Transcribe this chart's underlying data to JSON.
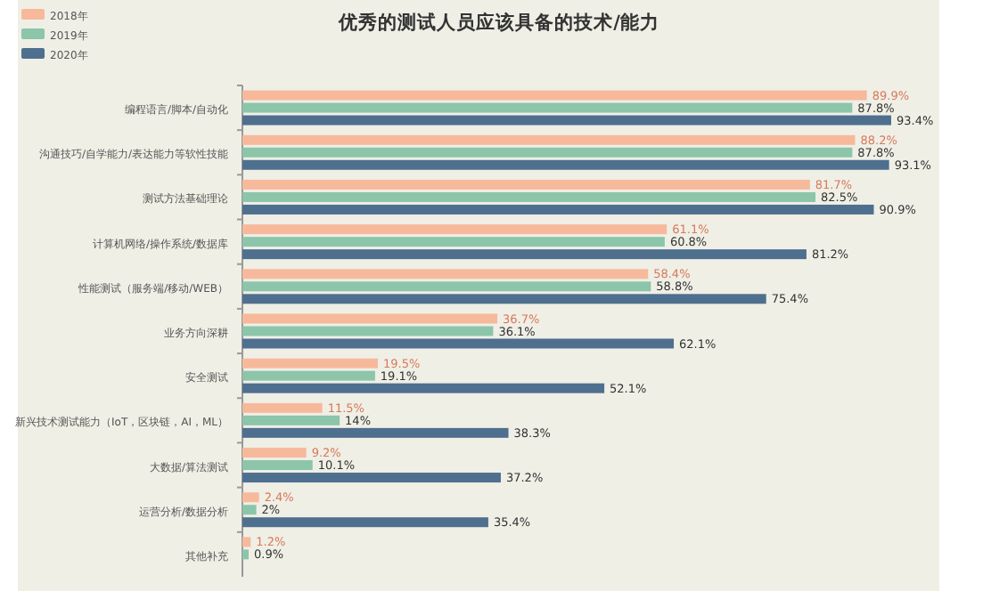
{
  "chart_data": {
    "type": "bar",
    "orientation": "horizontal",
    "title": "优秀的测试人员应该具备的技术/能力",
    "categories": [
      "编程语言/脚本/自动化",
      "沟通技巧/自学能力/表达能力等软性技能",
      "测试方法基础理论",
      "计算机网络/操作系统/数据库",
      "性能测试（服务端/移动/WEB）",
      "业务方向深耕",
      "安全测试",
      "新兴技术测试能力（IoT，区块链，AI，ML）",
      "大数据/算法测试",
      "运营分析/数据分析",
      "其他补充"
    ],
    "series": [
      {
        "name": "2018年",
        "color": "#f7b99b",
        "values": [
          89.9,
          88.2,
          81.7,
          61.1,
          58.4,
          36.7,
          19.5,
          11.5,
          9.2,
          2.4,
          1.2
        ],
        "value_labels": [
          "89.9%",
          "88.2%",
          "81.7%",
          "61.1%",
          "58.4%",
          "36.7%",
          "19.5%",
          "11.5%",
          "9.2%",
          "2.4%",
          "1.2%"
        ]
      },
      {
        "name": "2019年",
        "color": "#8cc5a9",
        "values": [
          87.8,
          87.8,
          82.5,
          60.8,
          58.8,
          36.1,
          19.1,
          14,
          10.1,
          2,
          0.9
        ],
        "value_labels": [
          "87.8%",
          "87.8%",
          "82.5%",
          "60.8%",
          "58.8%",
          "36.1%",
          "19.1%",
          "14%",
          "10.1%",
          "2%",
          "0.9%"
        ]
      },
      {
        "name": "2020年",
        "color": "#4f6f8f",
        "values": [
          93.4,
          93.1,
          90.9,
          81.2,
          75.4,
          62.1,
          52.1,
          38.3,
          37.2,
          35.4,
          null
        ],
        "value_labels": [
          "93.4%",
          "93.1%",
          "90.9%",
          "81.2%",
          "75.4%",
          "62.1%",
          "52.1%",
          "38.3%",
          "37.2%",
          "35.4%",
          null
        ]
      }
    ],
    "legend": "top left"
  }
}
